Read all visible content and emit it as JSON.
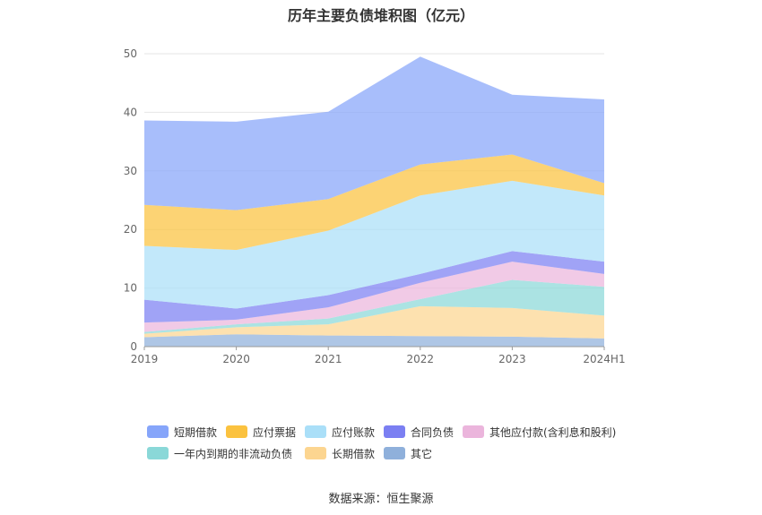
{
  "chart_data": {
    "type": "area",
    "title": "历年主要负债堆积图（亿元）",
    "categories": [
      "2019",
      "2020",
      "2021",
      "2022",
      "2023",
      "2024H1"
    ],
    "ylim": [
      0,
      50
    ],
    "yticks": [
      0,
      10,
      20,
      30,
      40,
      50
    ],
    "grid": true,
    "legend_position": "bottom",
    "stacked": true,
    "series": [
      {
        "name": "其它",
        "color": "#8fb0db",
        "values": [
          1.6,
          2.1,
          1.9,
          1.8,
          1.7,
          1.4
        ]
      },
      {
        "name": "长期借款",
        "color": "#fcd590",
        "values": [
          0.6,
          1.2,
          1.9,
          5.1,
          4.9,
          3.9
        ]
      },
      {
        "name": "一年内到期的非流动负债",
        "color": "#8ad8d8",
        "values": [
          0.3,
          0.5,
          1.0,
          1.2,
          4.8,
          4.9
        ]
      },
      {
        "name": "其他应付款(含利息和股利)",
        "color": "#ebb5dc",
        "values": [
          1.6,
          0.8,
          1.9,
          2.8,
          3.1,
          2.2
        ]
      },
      {
        "name": "合同负债",
        "color": "#7b7ff2",
        "values": [
          3.9,
          1.9,
          2.1,
          1.5,
          1.8,
          2.1
        ]
      },
      {
        "name": "应付账款",
        "color": "#aadff8",
        "values": [
          9.2,
          10.0,
          11.0,
          13.4,
          12.0,
          11.3
        ]
      },
      {
        "name": "应付票据",
        "color": "#fbc23f",
        "values": [
          7.0,
          6.8,
          5.4,
          5.3,
          4.5,
          2.1
        ]
      },
      {
        "name": "短期借款",
        "color": "#86a5fa",
        "values": [
          14.4,
          15.1,
          14.9,
          18.4,
          10.2,
          14.3
        ]
      }
    ],
    "legend_order": [
      "短期借款",
      "应付票据",
      "应付账款",
      "合同负债",
      "其他应付款(含利息和股利)",
      "一年内到期的非流动负债",
      "长期借款",
      "其它"
    ]
  },
  "source": "数据来源：恒生聚源"
}
